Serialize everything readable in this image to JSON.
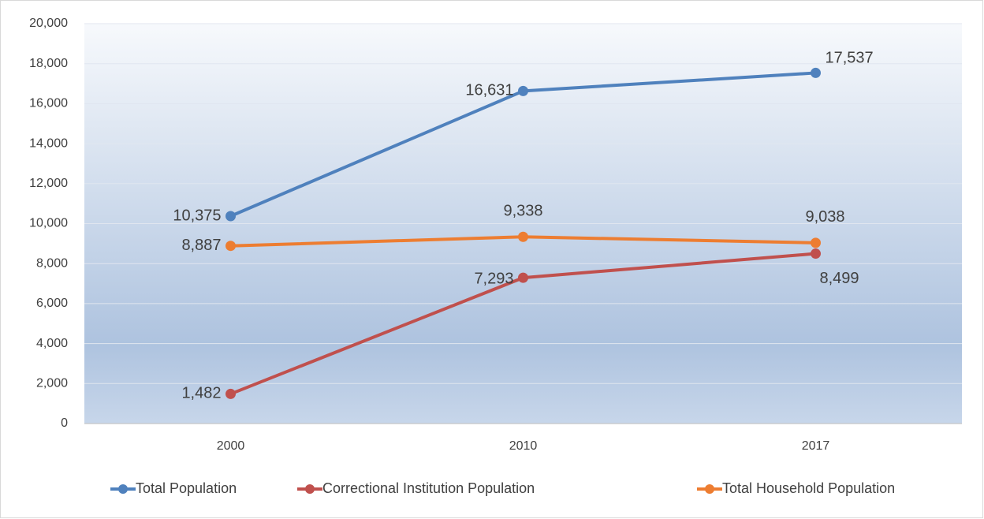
{
  "chart_data": {
    "type": "line",
    "categories": [
      "2000",
      "2010",
      "2017"
    ],
    "series": [
      {
        "name": "Total Population",
        "color": "#4f81bd",
        "values": [
          10375,
          16631,
          17537
        ],
        "value_labels": [
          "10,375",
          "16,631",
          "17,537"
        ]
      },
      {
        "name": "Correctional Institution Population",
        "color": "#c0504d",
        "values": [
          1482,
          7293,
          8499
        ],
        "value_labels": [
          "1,482",
          "7,293",
          "8,499"
        ]
      },
      {
        "name": "Total Household Population",
        "color": "#ed7d31",
        "values": [
          8887,
          9338,
          9038
        ],
        "value_labels": [
          "8,887",
          "9,338",
          "9,038"
        ]
      }
    ],
    "ylim": [
      0,
      20000
    ],
    "yticks": [
      0,
      {
        "value": 2000,
        "label": "2,000"
      },
      {
        "value": 4000,
        "label": "4,000"
      },
      {
        "value": 6000,
        "label": "6,000"
      },
      {
        "value": 8000,
        "label": "8,000"
      },
      {
        "value": 10000,
        "label": "10,000"
      },
      {
        "value": 12000,
        "label": "12,000"
      },
      {
        "value": 14000,
        "label": "14,000"
      },
      {
        "value": 16000,
        "label": "16,000"
      },
      {
        "value": 18000,
        "label": "18,000"
      },
      {
        "value": 20000,
        "label": "20,000"
      }
    ],
    "grid": true,
    "legend": "bottom"
  }
}
